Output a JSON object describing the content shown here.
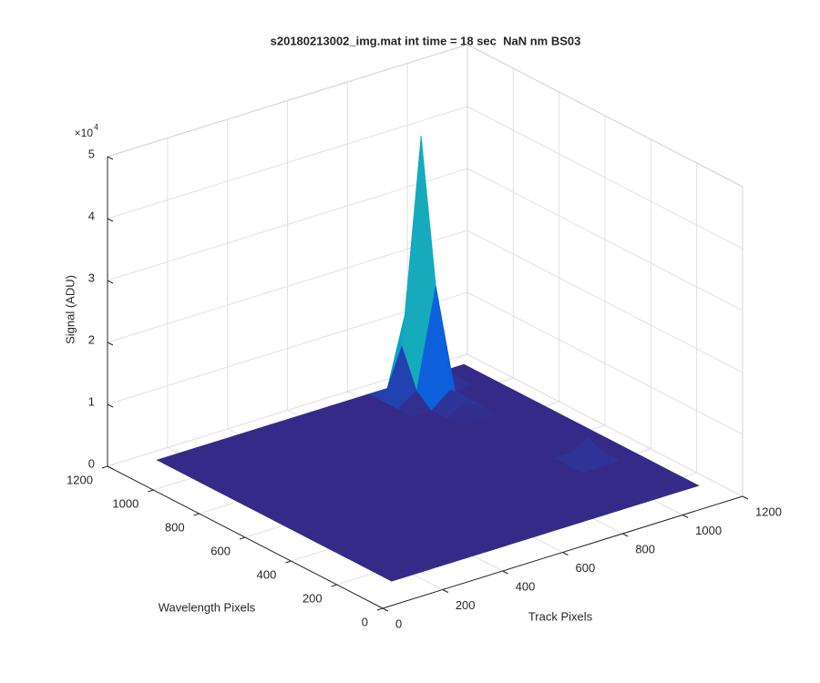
{
  "chart_data": {
    "type": "surface",
    "title": "s20180213002_img.mat int time = 18 sec  NaN nm BS03",
    "xlabel": "Track Pixels",
    "ylabel": "Wavelength Pixels",
    "zlabel": "Signal (ADU)",
    "zscale_base": "×10",
    "zscale_power": "4",
    "xlim": [
      0,
      1200
    ],
    "ylim": [
      0,
      1200
    ],
    "zlim": [
      0,
      50000
    ],
    "xticks": [
      0,
      200,
      400,
      600,
      800,
      1000,
      1200
    ],
    "yticks": [
      0,
      200,
      400,
      600,
      800,
      1000,
      1200
    ],
    "zticks": [
      {
        "value": 0,
        "label": "0"
      },
      {
        "value": 10000,
        "label": "1"
      },
      {
        "value": 20000,
        "label": "2"
      },
      {
        "value": 30000,
        "label": "3"
      },
      {
        "value": 40000,
        "label": "4"
      },
      {
        "value": 50000,
        "label": "5"
      }
    ],
    "grid": true,
    "colormap": [
      "#352a87",
      "#0f5cdd",
      "#1481d6",
      "#06a4ca",
      "#2eb7a4",
      "#87bf77",
      "#d1bb59",
      "#fec832",
      "#f9fb0e"
    ],
    "x": [
      128,
      192,
      256,
      320,
      384,
      448,
      512,
      576,
      640,
      704,
      768,
      832,
      896,
      960,
      1024,
      1088,
      1152
    ],
    "y": [
      128,
      192,
      256,
      320,
      384,
      448,
      512,
      576,
      640,
      704,
      768,
      832,
      896,
      960,
      1024,
      1088,
      1152
    ],
    "z": [
      [
        0,
        0,
        0,
        0,
        0,
        0,
        0,
        0,
        0,
        0,
        0,
        0,
        0,
        0,
        0,
        0,
        0
      ],
      [
        0,
        0,
        0,
        0,
        0,
        0,
        0,
        0,
        0,
        0,
        0,
        0,
        0,
        0,
        0,
        0,
        0
      ],
      [
        0,
        0,
        0,
        0,
        0,
        0,
        0,
        0,
        0,
        0,
        0,
        0,
        0,
        0,
        0,
        0,
        0
      ],
      [
        0,
        0,
        0,
        0,
        0,
        0,
        0,
        0,
        0,
        0,
        0,
        0,
        0,
        0,
        0,
        0,
        0
      ],
      [
        0,
        0,
        0,
        0,
        0,
        0,
        0,
        0,
        0,
        0,
        0,
        0,
        0,
        0,
        0,
        0,
        0
      ],
      [
        0,
        0,
        0,
        0,
        0,
        0,
        0,
        0,
        0,
        0,
        0,
        0,
        0,
        0,
        3500,
        0,
        0
      ],
      [
        0,
        0,
        0,
        0,
        0,
        0,
        0,
        0,
        0,
        0,
        0,
        0,
        0,
        0,
        0,
        0,
        0
      ],
      [
        0,
        0,
        0,
        0,
        0,
        0,
        0,
        0,
        0,
        0,
        0,
        0,
        0,
        0,
        0,
        0,
        0
      ],
      [
        0,
        0,
        0,
        0,
        0,
        0,
        0,
        0,
        0,
        0,
        0,
        0,
        0,
        0,
        0,
        0,
        0
      ],
      [
        0,
        0,
        0,
        0,
        0,
        0,
        0,
        0,
        0,
        0,
        0,
        0,
        0,
        0,
        0,
        0,
        0
      ],
      [
        0,
        0,
        0,
        0,
        0,
        0,
        0,
        0,
        0,
        0,
        0,
        0,
        0,
        0,
        0,
        0,
        0
      ],
      [
        0,
        0,
        0,
        0,
        0,
        0,
        0,
        0,
        0,
        0,
        0,
        0,
        0,
        0,
        0,
        0,
        0
      ],
      [
        0,
        0,
        0,
        0,
        0,
        0,
        0,
        0,
        0,
        0,
        0,
        0,
        0,
        1500,
        0,
        0,
        0
      ],
      [
        0,
        0,
        0,
        0,
        0,
        0,
        0,
        0,
        0,
        0,
        0,
        0,
        0,
        2500,
        0,
        0,
        0
      ],
      [
        0,
        0,
        0,
        0,
        0,
        0,
        0,
        0,
        0,
        0,
        0,
        0,
        2000,
        18000,
        0,
        0,
        0
      ],
      [
        0,
        0,
        0,
        0,
        0,
        0,
        0,
        0,
        0,
        0,
        0,
        0,
        8000,
        41000,
        3000,
        0,
        0
      ],
      [
        0,
        0,
        0,
        0,
        0,
        0,
        0,
        0,
        0,
        0,
        0,
        0,
        0,
        12000,
        0,
        0,
        0
      ]
    ]
  }
}
